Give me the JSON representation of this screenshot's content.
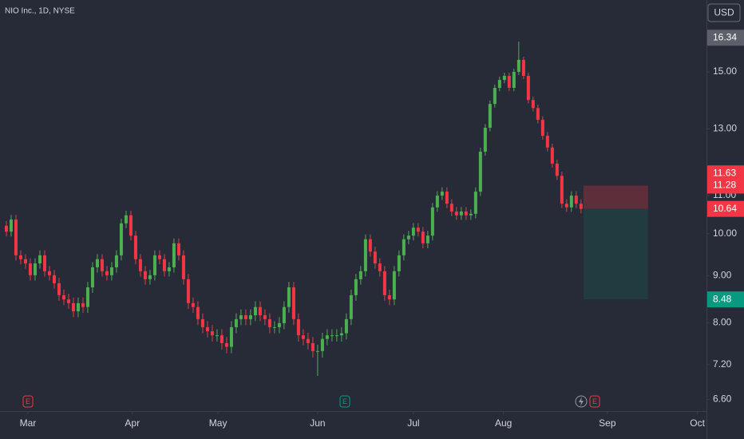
{
  "chart_data": {
    "type": "candlestick",
    "title": "NIO Inc., 1D, NYSE",
    "currency": "USD",
    "log_y": true,
    "grid": false,
    "up_color": "#4caf50",
    "down_color": "#f23645",
    "ylim": [
      6.41,
      17.96
    ],
    "yticks": [
      {
        "value": 15,
        "label": "15.00"
      },
      {
        "value": 13,
        "label": "13.00"
      },
      {
        "value": 11,
        "label": "11.00"
      },
      {
        "value": 10,
        "label": "10.00"
      },
      {
        "value": 9,
        "label": "9.00"
      },
      {
        "value": 8,
        "label": "8.00"
      },
      {
        "value": 7.2,
        "label": "7.20"
      },
      {
        "value": 6.6,
        "label": "6.60"
      }
    ],
    "xlim": [
      -1.33,
      146.2
    ],
    "xticks": [
      {
        "value": 4.5,
        "label": "Mar"
      },
      {
        "value": 26.3,
        "label": "Apr"
      },
      {
        "value": 44.2,
        "label": "May"
      },
      {
        "value": 65,
        "label": "Jun"
      },
      {
        "value": 85,
        "label": "Jul"
      },
      {
        "value": 103.8,
        "label": "Aug"
      },
      {
        "value": 125.5,
        "label": "Sep"
      },
      {
        "value": 144.3,
        "label": "Oct"
      }
    ],
    "open": [
      10.2,
      10.05,
      10.36,
      9.47,
      9.38,
      9.28,
      9.01,
      9.28,
      9.47,
      9.1,
      9.01,
      8.83,
      8.57,
      8.48,
      8.4,
      8.23,
      8.4,
      8.32,
      8.74,
      9.19,
      9.38,
      9.1,
      9.01,
      9.19,
      9.47,
      10.26,
      10.47,
      9.95,
      9.38,
      9.1,
      8.92,
      9.01,
      9.47,
      9.38,
      9.1,
      9.19,
      9.76,
      9.47,
      8.92,
      8.4,
      8.32,
      8.07,
      7.91,
      7.83,
      7.75,
      7.75,
      7.6,
      7.53,
      7.91,
      8.07,
      8.15,
      8.07,
      8.15,
      8.32,
      8.15,
      8.07,
      7.91,
      7.91,
      7.99,
      8.32,
      8.74,
      8.07,
      7.75,
      7.68,
      7.6,
      7.45,
      7.45,
      7.68,
      7.75,
      7.75,
      7.75,
      7.79,
      8.07,
      8.57,
      8.92,
      9.1,
      9.86,
      9.56,
      9.28,
      9.1,
      8.57,
      8.48,
      9.1,
      9.47,
      9.86,
      9.95,
      10.15,
      10.05,
      9.76,
      9.95,
      10.68,
      11.0,
      11.11,
      10.78,
      10.57,
      10.47,
      10.57,
      10.47,
      10.51,
      11.11,
      12.28,
      13.04,
      13.84,
      14.41,
      14.7,
      14.85,
      14.41,
      15.0,
      15.46,
      14.85,
      13.98,
      13.7,
      13.3,
      12.78,
      12.41,
      11.92,
      11.56,
      10.78,
      10.68,
      11.0,
      10.78
    ],
    "high": [
      10.32,
      10.48,
      10.48,
      9.59,
      9.5,
      9.4,
      9.4,
      9.59,
      9.59,
      9.22,
      9.13,
      8.95,
      8.69,
      8.6,
      8.52,
      8.52,
      8.52,
      8.86,
      9.31,
      9.5,
      9.5,
      9.22,
      9.31,
      9.59,
      10.38,
      10.59,
      10.59,
      10.07,
      9.5,
      9.22,
      9.13,
      9.59,
      9.59,
      9.5,
      9.31,
      9.88,
      9.88,
      9.59,
      9.04,
      8.52,
      8.44,
      8.19,
      8.03,
      7.95,
      7.87,
      7.87,
      7.72,
      8.03,
      8.19,
      8.27,
      8.27,
      8.27,
      8.44,
      8.44,
      8.27,
      8.19,
      8.03,
      8.11,
      8.44,
      8.86,
      8.86,
      8.19,
      7.87,
      7.8,
      7.72,
      7.57,
      7.8,
      7.87,
      7.87,
      7.87,
      7.91,
      8.19,
      8.69,
      9.04,
      9.22,
      9.98,
      9.98,
      9.68,
      9.4,
      9.22,
      8.69,
      9.22,
      9.59,
      9.98,
      10.07,
      10.27,
      10.27,
      10.17,
      10.07,
      10.8,
      11.12,
      11.23,
      11.23,
      10.9,
      10.69,
      10.69,
      10.69,
      10.63,
      11.23,
      12.4,
      13.16,
      13.96,
      14.53,
      14.82,
      14.97,
      14.97,
      15.12,
      16.18,
      15.58,
      14.97,
      14.1,
      13.82,
      13.42,
      12.9,
      12.53,
      12.04,
      11.68,
      10.9,
      11.12,
      11.12,
      10.9
    ],
    "low": [
      9.93,
      9.93,
      9.35,
      9.26,
      9.16,
      8.89,
      8.89,
      9.16,
      8.98,
      8.89,
      8.71,
      8.45,
      8.36,
      8.28,
      8.11,
      8.11,
      8.2,
      8.2,
      8.62,
      9.07,
      8.98,
      8.89,
      8.89,
      9.07,
      9.35,
      10.14,
      9.83,
      9.26,
      8.98,
      8.8,
      8.8,
      8.89,
      9.26,
      8.98,
      8.98,
      9.07,
      9.35,
      8.8,
      8.28,
      8.2,
      7.95,
      7.79,
      7.71,
      7.63,
      7.63,
      7.48,
      7.41,
      7.41,
      7.79,
      7.95,
      7.95,
      7.95,
      8.03,
      8.03,
      7.95,
      7.79,
      7.79,
      7.79,
      7.87,
      8.2,
      7.95,
      7.63,
      7.56,
      7.48,
      7.33,
      7.0,
      7.33,
      7.56,
      7.63,
      7.63,
      7.63,
      7.67,
      7.95,
      8.45,
      8.8,
      8.98,
      9.44,
      9.16,
      8.98,
      8.45,
      8.36,
      8.36,
      8.98,
      9.35,
      9.74,
      9.83,
      9.93,
      9.64,
      9.64,
      9.83,
      10.56,
      10.88,
      10.66,
      10.45,
      10.35,
      10.35,
      10.35,
      10.35,
      10.39,
      10.99,
      12.16,
      12.92,
      13.72,
      14.29,
      14.58,
      14.29,
      14.29,
      14.88,
      14.73,
      13.86,
      13.58,
      13.18,
      12.66,
      12.29,
      11.8,
      11.44,
      10.66,
      10.56,
      10.56,
      10.66,
      10.52
    ],
    "close": [
      10.05,
      10.36,
      9.47,
      9.38,
      9.28,
      9.01,
      9.28,
      9.47,
      9.1,
      9.01,
      8.83,
      8.57,
      8.48,
      8.4,
      8.23,
      8.4,
      8.32,
      8.74,
      9.19,
      9.38,
      9.1,
      9.01,
      9.19,
      9.47,
      10.26,
      10.47,
      9.95,
      9.38,
      9.1,
      8.92,
      9.01,
      9.47,
      9.38,
      9.1,
      9.19,
      9.76,
      9.47,
      8.92,
      8.4,
      8.32,
      8.07,
      7.91,
      7.83,
      7.75,
      7.75,
      7.6,
      7.53,
      7.91,
      8.07,
      8.15,
      8.07,
      8.15,
      8.32,
      8.15,
      8.07,
      7.91,
      7.91,
      7.99,
      8.32,
      8.74,
      8.07,
      7.75,
      7.68,
      7.6,
      7.45,
      7.45,
      7.68,
      7.75,
      7.75,
      7.75,
      7.79,
      8.07,
      8.57,
      8.92,
      9.1,
      9.86,
      9.56,
      9.28,
      9.1,
      8.57,
      8.48,
      9.1,
      9.47,
      9.86,
      9.95,
      10.15,
      10.05,
      9.76,
      9.95,
      10.68,
      11.0,
      11.11,
      10.78,
      10.57,
      10.47,
      10.57,
      10.47,
      10.51,
      11.11,
      12.28,
      13.04,
      13.84,
      14.41,
      14.7,
      14.85,
      14.41,
      15.0,
      15.46,
      14.85,
      13.98,
      13.7,
      13.3,
      12.78,
      12.41,
      11.92,
      11.56,
      10.78,
      10.68,
      11.0,
      10.78,
      10.64
    ],
    "position": {
      "entry": 10.64,
      "stop": 11.28,
      "target": 8.48
    },
    "price_labels": [
      {
        "value": 16.34,
        "label": "16.34",
        "color": "#5d606b"
      },
      {
        "value": 11.63,
        "label": "11.63",
        "color": "#f23645"
      },
      {
        "value": 11.28,
        "label": "11.28",
        "color": "#f23645"
      },
      {
        "value": 10.64,
        "label": "10.64",
        "color": "#f23645"
      },
      {
        "value": 8.48,
        "label": "8.48",
        "color": "#089981"
      }
    ],
    "events": [
      {
        "label": "E",
        "color": "#f23645"
      },
      {
        "label": "E",
        "color": "#089981"
      },
      {
        "label": "E",
        "color": "#f23645"
      }
    ]
  }
}
